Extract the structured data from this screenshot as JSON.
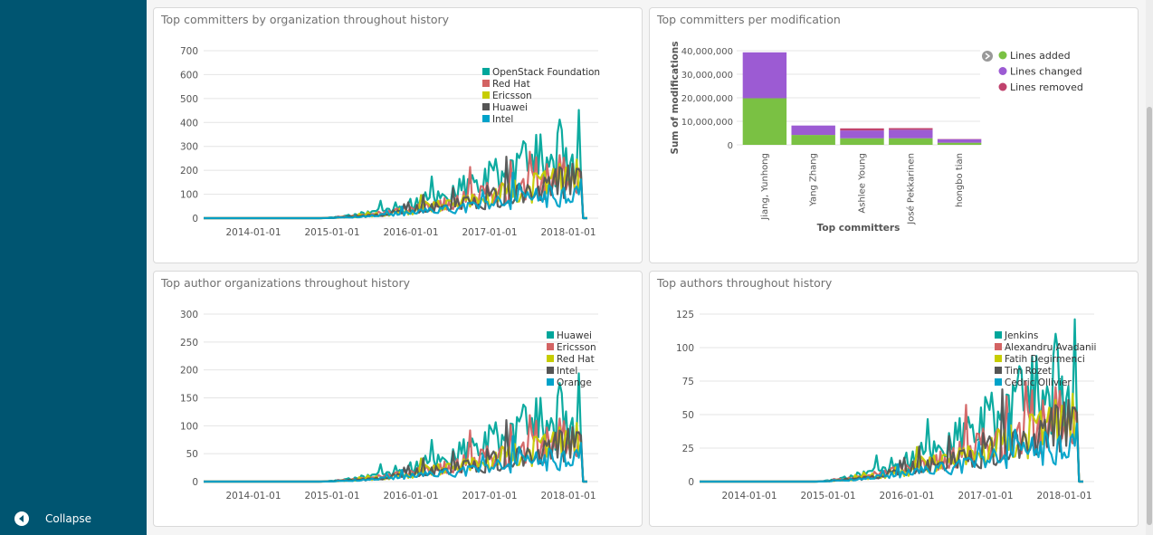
{
  "sidebar": {
    "collapse_label": "Collapse"
  },
  "panels": {
    "p1": {
      "title": "Top committers by organization throughout history",
      "chart_data": {
        "type": "line",
        "y_ticks": [
          0,
          100,
          200,
          300,
          400,
          500,
          600,
          700
        ],
        "ylim": [
          0,
          700
        ],
        "x_ticks": [
          "2014-01-01",
          "2015-01-01",
          "2016-01-01",
          "2017-01-01",
          "2018-01-01"
        ],
        "series": [
          {
            "name": "OpenStack Foundation",
            "color": "#00a69b"
          },
          {
            "name": "Red Hat",
            "color": "#d36363"
          },
          {
            "name": "Ericsson",
            "color": "#c7cd00"
          },
          {
            "name": "Huawei",
            "color": "#555555"
          },
          {
            "name": "Intel",
            "color": "#00a2c9"
          }
        ]
      }
    },
    "p2": {
      "title": "Top committers per modification",
      "chart_data": {
        "type": "bar",
        "categories": [
          "Jiang, Yunhong",
          "Yang Zhang",
          "Ashlee Young",
          "José Pekkarinen",
          "hongbo tian"
        ],
        "series": [
          {
            "name": "Lines added",
            "color": "#7ac143",
            "values": [
              19800000,
              4200000,
              2800000,
              2800000,
              900000
            ]
          },
          {
            "name": "Lines changed",
            "color": "#9c5bd3",
            "values": [
              19500000,
              4000000,
              3300000,
              3600000,
              1500000
            ]
          },
          {
            "name": "Lines removed",
            "color": "#c0426d",
            "values": [
              0,
              0,
              900000,
              700000,
              100000
            ]
          }
        ],
        "y_ticks": [
          0,
          10000000,
          20000000,
          30000000,
          40000000
        ],
        "y_tick_labels": [
          "0",
          "10,000,000",
          "20,000,000",
          "30,000,000",
          "40,000,000"
        ],
        "ylim": [
          0,
          40000000
        ],
        "ylabel": "Sum of modifications",
        "xlabel": "Top committers"
      }
    },
    "p3": {
      "title": "Top author organizations throughout history",
      "chart_data": {
        "type": "line",
        "y_ticks": [
          0,
          50,
          100,
          150,
          200,
          250,
          300
        ],
        "ylim": [
          0,
          300
        ],
        "x_ticks": [
          "2014-01-01",
          "2015-01-01",
          "2016-01-01",
          "2017-01-01",
          "2018-01-01"
        ],
        "series": [
          {
            "name": "Huawei",
            "color": "#00a69b"
          },
          {
            "name": "Ericsson",
            "color": "#d36363"
          },
          {
            "name": "Red Hat",
            "color": "#c7cd00"
          },
          {
            "name": "Intel",
            "color": "#555555"
          },
          {
            "name": "Orange",
            "color": "#00a2c9"
          }
        ]
      }
    },
    "p4": {
      "title": "Top authors throughout history",
      "chart_data": {
        "type": "line",
        "y_ticks": [
          0,
          25,
          50,
          75,
          100,
          125
        ],
        "ylim": [
          0,
          125
        ],
        "x_ticks": [
          "2014-01-01",
          "2015-01-01",
          "2016-01-01",
          "2017-01-01",
          "2018-01-01"
        ],
        "series": [
          {
            "name": "Jenkins",
            "color": "#00a69b"
          },
          {
            "name": "Alexandru Avadanii",
            "color": "#d36363"
          },
          {
            "name": "Fatih Degirmenci",
            "color": "#c7cd00"
          },
          {
            "name": "Tim Rozet",
            "color": "#555555"
          },
          {
            "name": "Cedric Ollivier",
            "color": "#00a2c9"
          }
        ]
      }
    }
  }
}
